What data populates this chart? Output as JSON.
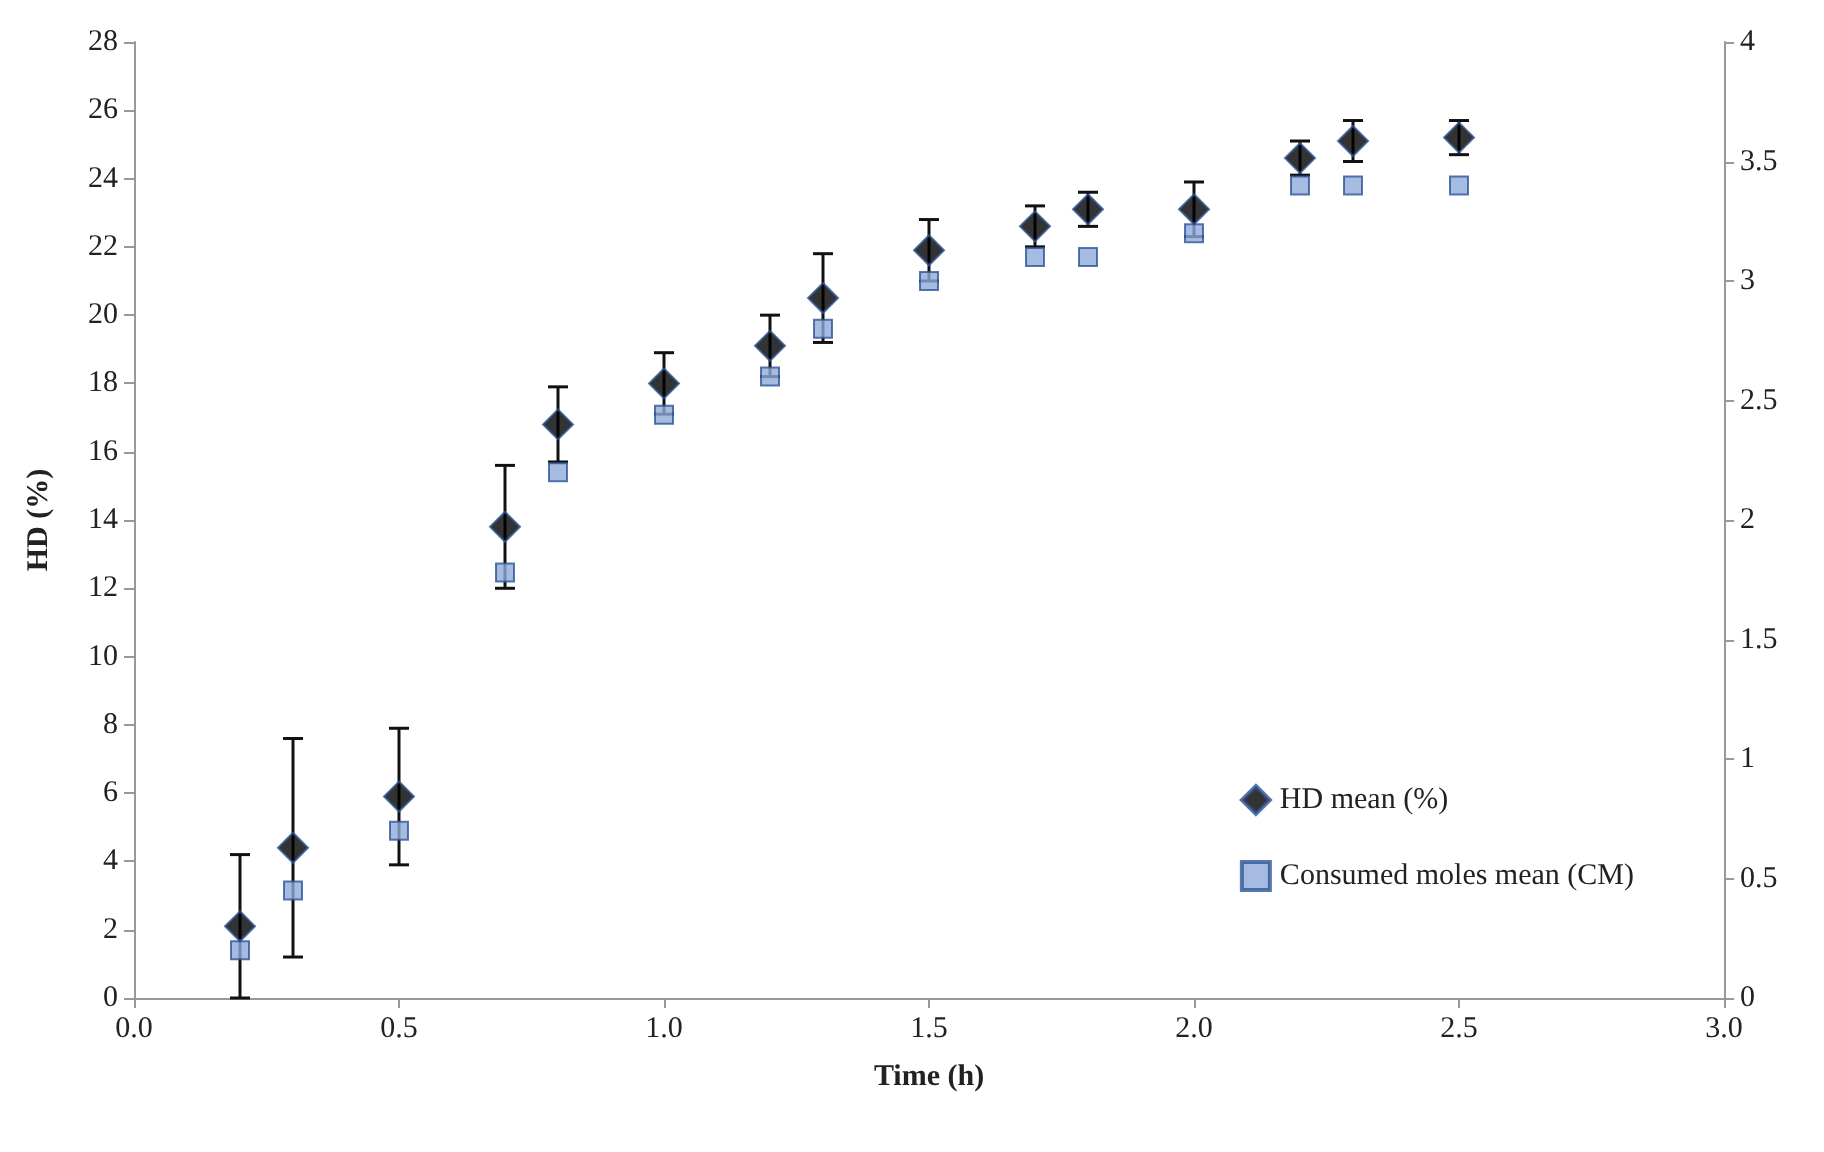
{
  "chart_data": {
    "type": "scatter",
    "xlabel": "Time (h)",
    "ylabel": "HD (%)",
    "x": [
      0.2,
      0.3,
      0.5,
      0.7,
      0.8,
      1.0,
      1.2,
      1.3,
      1.5,
      1.7,
      1.8,
      2.0,
      2.2,
      2.3,
      2.5
    ],
    "series": [
      {
        "name": "HD mean (%)",
        "color": "#000000",
        "marker": "diamond",
        "values": [
          2.1,
          4.4,
          5.9,
          13.8,
          16.8,
          18.0,
          19.1,
          20.5,
          21.9,
          22.6,
          23.1,
          23.1,
          24.6,
          25.1,
          25.2
        ],
        "errors": [
          2.1,
          3.2,
          2.0,
          1.8,
          1.1,
          0.9,
          0.9,
          1.3,
          0.9,
          0.6,
          0.5,
          0.8,
          0.5,
          0.6,
          0.5
        ]
      },
      {
        "name": "Consumed moles mean (CM)",
        "color": "#8eaadb",
        "marker": "square",
        "axis": "y2",
        "values": [
          0.2,
          0.45,
          0.7,
          1.78,
          2.2,
          2.44,
          2.6,
          2.8,
          3.0,
          3.1,
          3.1,
          3.2,
          3.4,
          3.4,
          3.4
        ]
      }
    ],
    "xlim": [
      0,
      3
    ],
    "xticks": [
      {
        "value": 0,
        "label": "0.0"
      },
      {
        "value": 0.5,
        "label": "0.5"
      },
      {
        "value": 1,
        "label": "1.0"
      },
      {
        "value": 1.5,
        "label": "1.5"
      },
      {
        "value": 2,
        "label": "2.0"
      },
      {
        "value": 2.5,
        "label": "2.5"
      },
      {
        "value": 3,
        "label": "3.0"
      }
    ],
    "ylim": [
      0,
      28
    ],
    "yticks": [
      0,
      2,
      4,
      6,
      8,
      10,
      12,
      14,
      16,
      18,
      20,
      22,
      24,
      26,
      28
    ],
    "y2lim": [
      0,
      4
    ],
    "y2ticks": [
      0,
      0.5,
      1,
      1.5,
      2,
      2.5,
      3,
      3.5,
      4
    ],
    "legend": "bottom right",
    "grid": false
  }
}
